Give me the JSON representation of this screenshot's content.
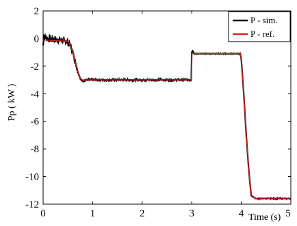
{
  "chart_data": {
    "type": "line",
    "title": "",
    "xlabel": "Time (s)",
    "ylabel": "Pp ( kW )",
    "xlim": [
      0,
      5
    ],
    "ylim": [
      -12,
      2
    ],
    "xticks": [
      0,
      1,
      2,
      3,
      4,
      5
    ],
    "yticks": [
      2,
      0,
      -2,
      -4,
      -6,
      -8,
      -10,
      -12
    ],
    "grid": false,
    "legend_position": "top-right",
    "series": [
      {
        "name": "P - sim.",
        "color": "#000000",
        "x": [
          0,
          0.02,
          0.05,
          0.1,
          0.2,
          0.3,
          0.4,
          0.5,
          0.55,
          0.6,
          0.65,
          0.7,
          0.75,
          0.8,
          0.85,
          0.9,
          1.0,
          1.5,
          2.0,
          2.5,
          2.99,
          3.0,
          3.02,
          3.05,
          3.5,
          3.98,
          4.0,
          4.05,
          4.1,
          4.15,
          4.2,
          4.3,
          4.5,
          5.0
        ],
        "y": [
          -0.5,
          0.2,
          0.1,
          0.0,
          -0.05,
          -0.1,
          -0.15,
          -0.25,
          -0.5,
          -1.0,
          -1.7,
          -2.4,
          -2.9,
          -3.1,
          -3.0,
          -3.0,
          -3.0,
          -3.0,
          -3.0,
          -3.0,
          -3.0,
          -1.0,
          -0.9,
          -1.1,
          -1.1,
          -1.1,
          -1.5,
          -4.0,
          -7.0,
          -9.5,
          -11.4,
          -11.6,
          -11.6,
          -11.6
        ]
      },
      {
        "name": "P - ref.",
        "color": "#d62020",
        "x": [
          0,
          0.5,
          0.55,
          0.6,
          0.65,
          0.7,
          0.75,
          0.8,
          0.85,
          0.9,
          1.0,
          2.0,
          2.99,
          3.0,
          3.98,
          4.0,
          4.05,
          4.1,
          4.15,
          4.2,
          4.3,
          5.0
        ],
        "y": [
          -0.1,
          -0.2,
          -0.5,
          -1.0,
          -1.7,
          -2.4,
          -2.9,
          -3.05,
          -3.0,
          -3.0,
          -3.0,
          -3.0,
          -3.0,
          -1.1,
          -1.1,
          -1.5,
          -4.0,
          -7.0,
          -9.5,
          -11.4,
          -11.6,
          -11.6
        ]
      }
    ],
    "noise_band": {
      "series": "P - sim.",
      "segments": [
        {
          "x_from": 0.0,
          "x_to": 0.7,
          "amplitude": 0.3
        },
        {
          "x_from": 0.7,
          "x_to": 3.0,
          "amplitude": 0.12
        },
        {
          "x_from": 3.0,
          "x_to": 5.0,
          "amplitude": 0.05
        }
      ]
    }
  }
}
